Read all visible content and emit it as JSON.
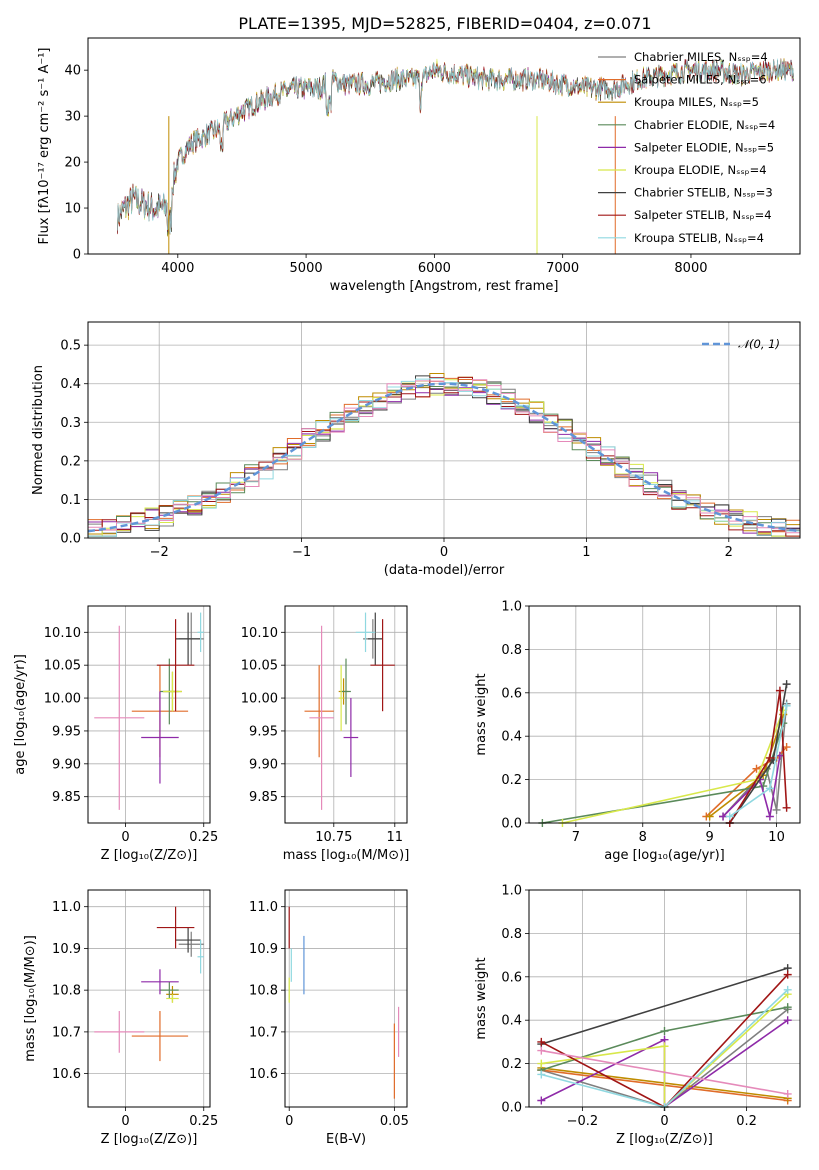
{
  "title": "PLATE=1395, MJD=52825, FIBERID=0404, z=0.071",
  "colors": {
    "Chabrier MILES": "#7f7f7f",
    "Salpeter MILES": "#e06c2a",
    "Kroupa MILES": "#bf8c00",
    "Chabrier ELODIE": "#5a8a5a",
    "Salpeter ELODIE": "#8e2aa8",
    "Kroupa ELODIE": "#d8e84a",
    "Chabrier STELIB": "#404040",
    "Salpeter STELIB": "#a01616",
    "Kroupa STELIB": "#8fd8e0",
    "normal": "#6095d8"
  },
  "chart_data": [
    {
      "type": "line",
      "xlabel": "wavelength [Angstrom, rest frame]",
      "ylabel": "Flux [fλ10⁻¹⁷ erg cm⁻² s⁻¹ A⁻¹]",
      "xlim": [
        3300,
        8850
      ],
      "ylim": [
        0,
        47
      ],
      "xticks": [
        4000,
        5000,
        6000,
        7000,
        8000
      ],
      "yticks": [
        0,
        10,
        20,
        30,
        40
      ],
      "legend_position": "right",
      "legend": [
        "Chabrier MILES, Nₛₛₚ=4",
        "Salpeter MILES, Nₛₛₚ=6",
        "Kroupa MILES, Nₛₛₚ=5",
        "Chabrier ELODIE, Nₛₛₚ=4",
        "Salpeter ELODIE, Nₛₛₚ=5",
        "Kroupa ELODIE, Nₛₛₚ=4",
        "Chabrier STELIB, Nₛₛₚ=3",
        "Salpeter STELIB, Nₛₛₚ=4",
        "Kroupa STELIB, Nₛₛₚ=4"
      ],
      "series_models": [
        "Chabrier MILES",
        "Salpeter MILES",
        "Kroupa MILES",
        "Chabrier ELODIE",
        "Salpeter ELODIE",
        "Kroupa ELODIE",
        "Chabrier STELIB",
        "Salpeter STELIB",
        "Kroupa STELIB"
      ],
      "spectrum_envelope": {
        "x": [
          3530,
          3650,
          3800,
          3900,
          3950,
          4000,
          4100,
          4300,
          4500,
          4700,
          4900,
          5100,
          5200,
          5300,
          5500,
          5700,
          5900,
          6000,
          6200,
          6400,
          6600,
          6800,
          7000,
          7200,
          7400,
          7600,
          7800,
          8000,
          8200,
          8400,
          8600,
          8800
        ],
        "y": [
          8,
          12,
          10,
          10,
          14,
          20,
          24,
          27,
          31,
          34,
          36,
          36,
          38,
          37,
          37,
          38,
          38,
          40,
          39,
          38,
          38,
          38,
          37,
          36,
          36,
          38,
          39,
          40,
          40,
          39,
          40,
          40
        ]
      }
    },
    {
      "type": "histogram",
      "xlabel": "(data-model)/error",
      "ylabel": "Normed distribution",
      "xlim": [
        -2.5,
        2.5
      ],
      "ylim": [
        0,
        0.56
      ],
      "xticks": [
        -2,
        -1,
        0,
        1,
        2
      ],
      "yticks": [
        0.0,
        0.1,
        0.2,
        0.3,
        0.4,
        0.5
      ],
      "legend": [
        "𝒩(0, 1)"
      ],
      "legend_position": "top-right",
      "bin_width": 0.1,
      "bins_start": -2.5,
      "reference_values_center": 0.4
    },
    {
      "type": "scatter",
      "xlabel": "Z [log₁₀(Z/Z⊙)]",
      "ylabel": "age  [log₁₀(age/yr)]",
      "xlim": [
        -0.12,
        0.27
      ],
      "ylim": [
        9.81,
        10.14
      ],
      "xticks": [
        0.0,
        0.25
      ],
      "yticks": [
        9.85,
        9.9,
        9.95,
        10.0,
        10.05,
        10.1
      ],
      "points": [
        {
          "model": "Chabrier MILES",
          "x": 0.21,
          "y": 10.09,
          "xerr": 0.04,
          "yerr": 0.04
        },
        {
          "model": "Salpeter MILES",
          "x": 0.11,
          "y": 9.98,
          "xerr": 0.09,
          "yerr": 0.07
        },
        {
          "model": "Kroupa MILES",
          "x": 0.15,
          "y": 10.01,
          "xerr": 0.03,
          "yerr": 0.03
        },
        {
          "model": "Chabrier ELODIE",
          "x": 0.14,
          "y": 10.01,
          "xerr": 0.03,
          "yerr": 0.05
        },
        {
          "model": "Salpeter ELODIE",
          "x": 0.11,
          "y": 9.94,
          "xerr": 0.06,
          "yerr": 0.07
        },
        {
          "model": "Kroupa ELODIE",
          "x": 0.15,
          "y": 10.01,
          "xerr": 0.03,
          "yerr": 0.03
        },
        {
          "model": "Chabrier STELIB",
          "x": 0.2,
          "y": 10.09,
          "xerr": 0.04,
          "yerr": 0.04
        },
        {
          "model": "Salpeter STELIB",
          "x": 0.16,
          "y": 10.05,
          "xerr": 0.06,
          "yerr": 0.07
        },
        {
          "model": "Kroupa STELIB",
          "x": 0.24,
          "y": 10.1,
          "xerr": 0.01,
          "yerr": 0.03
        },
        {
          "model": "Salpeter MILES pink",
          "x": -0.02,
          "y": 9.97,
          "xerr": 0.08,
          "yerr": 0.14
        }
      ]
    },
    {
      "type": "scatter",
      "xlabel": "mass [log₁₀(M/M⊙)]",
      "ylabel": "",
      "xlim": [
        10.55,
        11.05
      ],
      "ylim": [
        9.81,
        10.14
      ],
      "xticks": [
        10.75,
        11.0
      ],
      "yticks": [
        9.85,
        9.9,
        9.95,
        10.0,
        10.05,
        10.1
      ],
      "points": [
        {
          "model": "Chabrier MILES",
          "x": 10.91,
          "y": 10.09,
          "xerr": 0.04,
          "yerr": 0.03
        },
        {
          "model": "Salpeter MILES",
          "x": 10.69,
          "y": 9.98,
          "xerr": 0.06,
          "yerr": 0.07
        },
        {
          "model": "Kroupa MILES",
          "x": 10.79,
          "y": 10.01,
          "xerr": 0.02,
          "yerr": 0.02
        },
        {
          "model": "Chabrier ELODIE",
          "x": 10.8,
          "y": 10.01,
          "xerr": 0.02,
          "yerr": 0.05
        },
        {
          "model": "Salpeter ELODIE",
          "x": 10.82,
          "y": 9.94,
          "xerr": 0.03,
          "yerr": 0.06
        },
        {
          "model": "Kroupa ELODIE",
          "x": 10.78,
          "y": 10.0,
          "xerr": 0.01,
          "yerr": 0.05
        },
        {
          "model": "Chabrier STELIB",
          "x": 10.92,
          "y": 10.09,
          "xerr": 0.03,
          "yerr": 0.04
        },
        {
          "model": "Salpeter STELIB",
          "x": 10.95,
          "y": 10.05,
          "xerr": 0.05,
          "yerr": 0.07
        },
        {
          "model": "Kroupa STELIB",
          "x": 10.88,
          "y": 10.1,
          "xerr": 0.04,
          "yerr": 0.03
        },
        {
          "model": "Salpeter MILES pink",
          "x": 10.7,
          "y": 9.97,
          "xerr": 0.05,
          "yerr": 0.14
        }
      ]
    },
    {
      "type": "line",
      "xlabel": "age  [log₁₀(age/yr)]",
      "ylabel": "mass weight",
      "xlim": [
        6.3,
        10.35
      ],
      "ylim": [
        0,
        1
      ],
      "xticks": [
        7,
        8,
        9,
        10
      ],
      "yticks": [
        0.0,
        0.2,
        0.4,
        0.6,
        0.8,
        1.0
      ],
      "series": [
        {
          "model": "Chabrier MILES",
          "x": [
            9.2,
            9.85,
            10.0,
            10.15
          ],
          "y": [
            0.03,
            0.25,
            0.06,
            0.55
          ]
        },
        {
          "model": "Salpeter MILES",
          "x": [
            8.95,
            9.7,
            10.0,
            10.15
          ],
          "y": [
            0.03,
            0.25,
            0.3,
            0.35
          ]
        },
        {
          "model": "Kroupa MILES",
          "x": [
            9.0,
            9.8,
            10.1
          ],
          "y": [
            0.03,
            0.22,
            0.5
          ]
        },
        {
          "model": "Chabrier ELODIE",
          "x": [
            6.5,
            9.8,
            10.1
          ],
          "y": [
            0.0,
            0.17,
            0.46
          ]
        },
        {
          "model": "Salpeter ELODIE",
          "x": [
            9.2,
            9.75,
            9.9,
            10.05
          ],
          "y": [
            0.03,
            0.2,
            0.03,
            0.31
          ]
        },
        {
          "model": "Kroupa ELODIE",
          "x": [
            6.8,
            9.7,
            10.1
          ],
          "y": [
            0.0,
            0.2,
            0.52
          ]
        },
        {
          "model": "Chabrier STELIB",
          "x": [
            9.3,
            9.95,
            10.15
          ],
          "y": [
            0.0,
            0.29,
            0.64
          ]
        },
        {
          "model": "Salpeter STELIB",
          "x": [
            9.3,
            9.9,
            10.05,
            10.15
          ],
          "y": [
            0.0,
            0.3,
            0.61,
            0.07
          ]
        },
        {
          "model": "Kroupa STELIB",
          "x": [
            9.3,
            9.9,
            10.15
          ],
          "y": [
            0.03,
            0.16,
            0.54
          ]
        }
      ]
    },
    {
      "type": "scatter",
      "xlabel": "Z [log₁₀(Z/Z⊙)]",
      "ylabel": "mass [log₁₀(M/M⊙)]",
      "xlim": [
        -0.12,
        0.27
      ],
      "ylim": [
        10.52,
        11.04
      ],
      "xticks": [
        0.0,
        0.25
      ],
      "yticks": [
        10.6,
        10.7,
        10.8,
        10.9,
        11.0
      ],
      "points": [
        {
          "model": "Chabrier MILES",
          "x": 0.21,
          "y": 10.91,
          "xerr": 0.04,
          "yerr": 0.03
        },
        {
          "model": "Salpeter MILES",
          "x": 0.11,
          "y": 10.69,
          "xerr": 0.09,
          "yerr": 0.06
        },
        {
          "model": "Kroupa MILES",
          "x": 0.15,
          "y": 10.79,
          "xerr": 0.02,
          "yerr": 0.02
        },
        {
          "model": "Chabrier ELODIE",
          "x": 0.14,
          "y": 10.8,
          "xerr": 0.03,
          "yerr": 0.02
        },
        {
          "model": "Salpeter ELODIE",
          "x": 0.11,
          "y": 10.82,
          "xerr": 0.06,
          "yerr": 0.03
        },
        {
          "model": "Kroupa ELODIE",
          "x": 0.15,
          "y": 10.78,
          "xerr": 0.02,
          "yerr": 0.01
        },
        {
          "model": "Chabrier STELIB",
          "x": 0.2,
          "y": 10.92,
          "xerr": 0.04,
          "yerr": 0.03
        },
        {
          "model": "Salpeter STELIB",
          "x": 0.16,
          "y": 10.95,
          "xerr": 0.06,
          "yerr": 0.05
        },
        {
          "model": "Kroupa STELIB",
          "x": 0.24,
          "y": 10.88,
          "xerr": 0.01,
          "yerr": 0.04
        },
        {
          "model": "Salpeter MILES pink",
          "x": -0.02,
          "y": 10.7,
          "xerr": 0.08,
          "yerr": 0.05
        }
      ]
    },
    {
      "type": "scatter",
      "xlabel": "E(B-V)",
      "ylabel": "",
      "xlim": [
        -0.002,
        0.056
      ],
      "ylim": [
        10.52,
        11.04
      ],
      "xticks": [
        0.0,
        0.05
      ],
      "yticks": [
        10.6,
        10.7,
        10.8,
        10.9,
        11.0
      ],
      "points": [
        {
          "model": "Salpeter STELIB",
          "x": 0.0,
          "y": 10.95,
          "xerr": 0.0,
          "yerr": 0.05
        },
        {
          "model": "Kroupa ELODIE",
          "x": 0.0,
          "y": 10.8,
          "xerr": 0.0,
          "yerr": 0.03
        },
        {
          "model": "Kroupa STELIB",
          "x": 0.001,
          "y": 10.86,
          "xerr": 0.0,
          "yerr": 0.04
        },
        {
          "model": "normal",
          "x": 0.007,
          "y": 10.86,
          "xerr": 0.0,
          "yerr": 0.07
        },
        {
          "model": "Salpeter MILES",
          "x": 0.05,
          "y": 10.63,
          "xerr": 0.0,
          "yerr": 0.09
        },
        {
          "model": "Salpeter MILES pink",
          "x": 0.052,
          "y": 10.7,
          "xerr": 0.0,
          "yerr": 0.06
        }
      ]
    },
    {
      "type": "line",
      "xlabel": "Z [log₁₀(Z/Z⊙)]",
      "ylabel": "mass weight",
      "xlim": [
        -0.33,
        0.33
      ],
      "ylim": [
        0,
        1
      ],
      "xticks": [
        -0.2,
        0.0,
        0.2
      ],
      "yticks": [
        0.0,
        0.2,
        0.4,
        0.6,
        0.8,
        1.0
      ],
      "series": [
        {
          "model": "Chabrier MILES",
          "x": [
            -0.3,
            0.0,
            0.3
          ],
          "y": [
            0.17,
            0.0,
            0.45
          ]
        },
        {
          "model": "Salpeter MILES",
          "x": [
            -0.3,
            0.3
          ],
          "y": [
            0.17,
            0.03
          ]
        },
        {
          "model": "Kroupa MILES",
          "x": [
            -0.3,
            0.3
          ],
          "y": [
            0.18,
            0.04
          ]
        },
        {
          "model": "Chabrier ELODIE",
          "x": [
            -0.3,
            0.0,
            0.3
          ],
          "y": [
            0.17,
            0.35,
            0.46
          ]
        },
        {
          "model": "Salpeter ELODIE",
          "x": [
            -0.3,
            0.0,
            0.0,
            0.3
          ],
          "y": [
            0.03,
            0.31,
            0.0,
            0.4
          ]
        },
        {
          "model": "Kroupa ELODIE",
          "x": [
            -0.3,
            0.0,
            0.0,
            0.3
          ],
          "y": [
            0.2,
            0.28,
            0.0,
            0.52
          ]
        },
        {
          "model": "Chabrier STELIB",
          "x": [
            -0.3,
            0.3
          ],
          "y": [
            0.29,
            0.64
          ]
        },
        {
          "model": "Salpeter STELIB",
          "x": [
            -0.3,
            0.0,
            0.3
          ],
          "y": [
            0.3,
            0.0,
            0.61
          ]
        },
        {
          "model": "Kroupa STELIB",
          "x": [
            -0.3,
            0.0,
            0.3
          ],
          "y": [
            0.15,
            0.0,
            0.54
          ]
        },
        {
          "model": "Salpeter MILES pink",
          "x": [
            -0.3,
            0.3
          ],
          "y": [
            0.26,
            0.06
          ]
        }
      ]
    }
  ]
}
